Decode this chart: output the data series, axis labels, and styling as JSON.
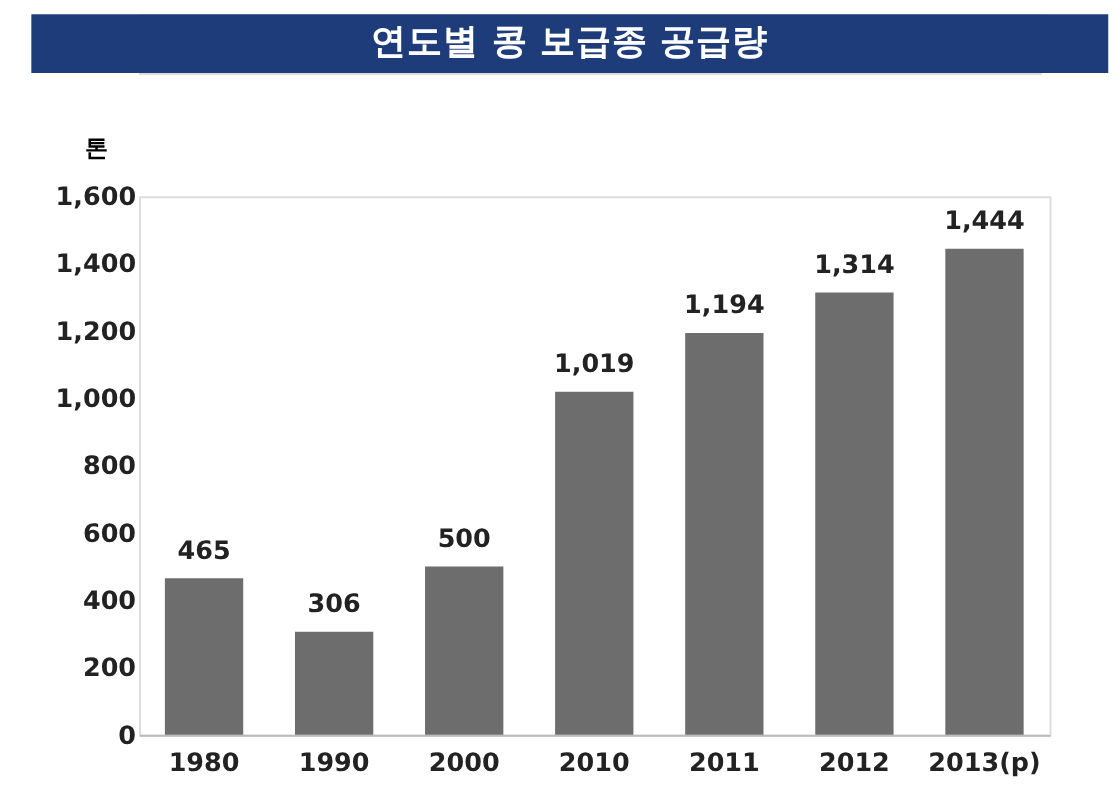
{
  "chart_data": {
    "type": "bar",
    "title": "연도별 콩 보급종 공급량",
    "ylabel": "톤",
    "categories": [
      "1980",
      "1990",
      "2000",
      "2010",
      "2011",
      "2012",
      "2013(p)"
    ],
    "values": [
      465,
      306,
      500,
      1019,
      1194,
      1314,
      1444
    ],
    "color": "#6d6d6d",
    "value_labels": [
      "465",
      "306",
      "500",
      "1,019",
      "1,194",
      "1,314",
      "1,444"
    ],
    "ylim": [
      0,
      1600
    ],
    "yticks": [
      0,
      {
        "value": 200,
        "label": "200"
      },
      {
        "value": 400,
        "label": "400"
      },
      {
        "value": 600,
        "label": "600"
      },
      {
        "value": 800,
        "label": "800"
      },
      {
        "value": 1000,
        "label": "1,000"
      },
      {
        "value": 1200,
        "label": "1,200"
      },
      {
        "value": 1400,
        "label": "1,400"
      },
      {
        "value": 1600,
        "label": "1,600"
      }
    ],
    "grid": false
  }
}
